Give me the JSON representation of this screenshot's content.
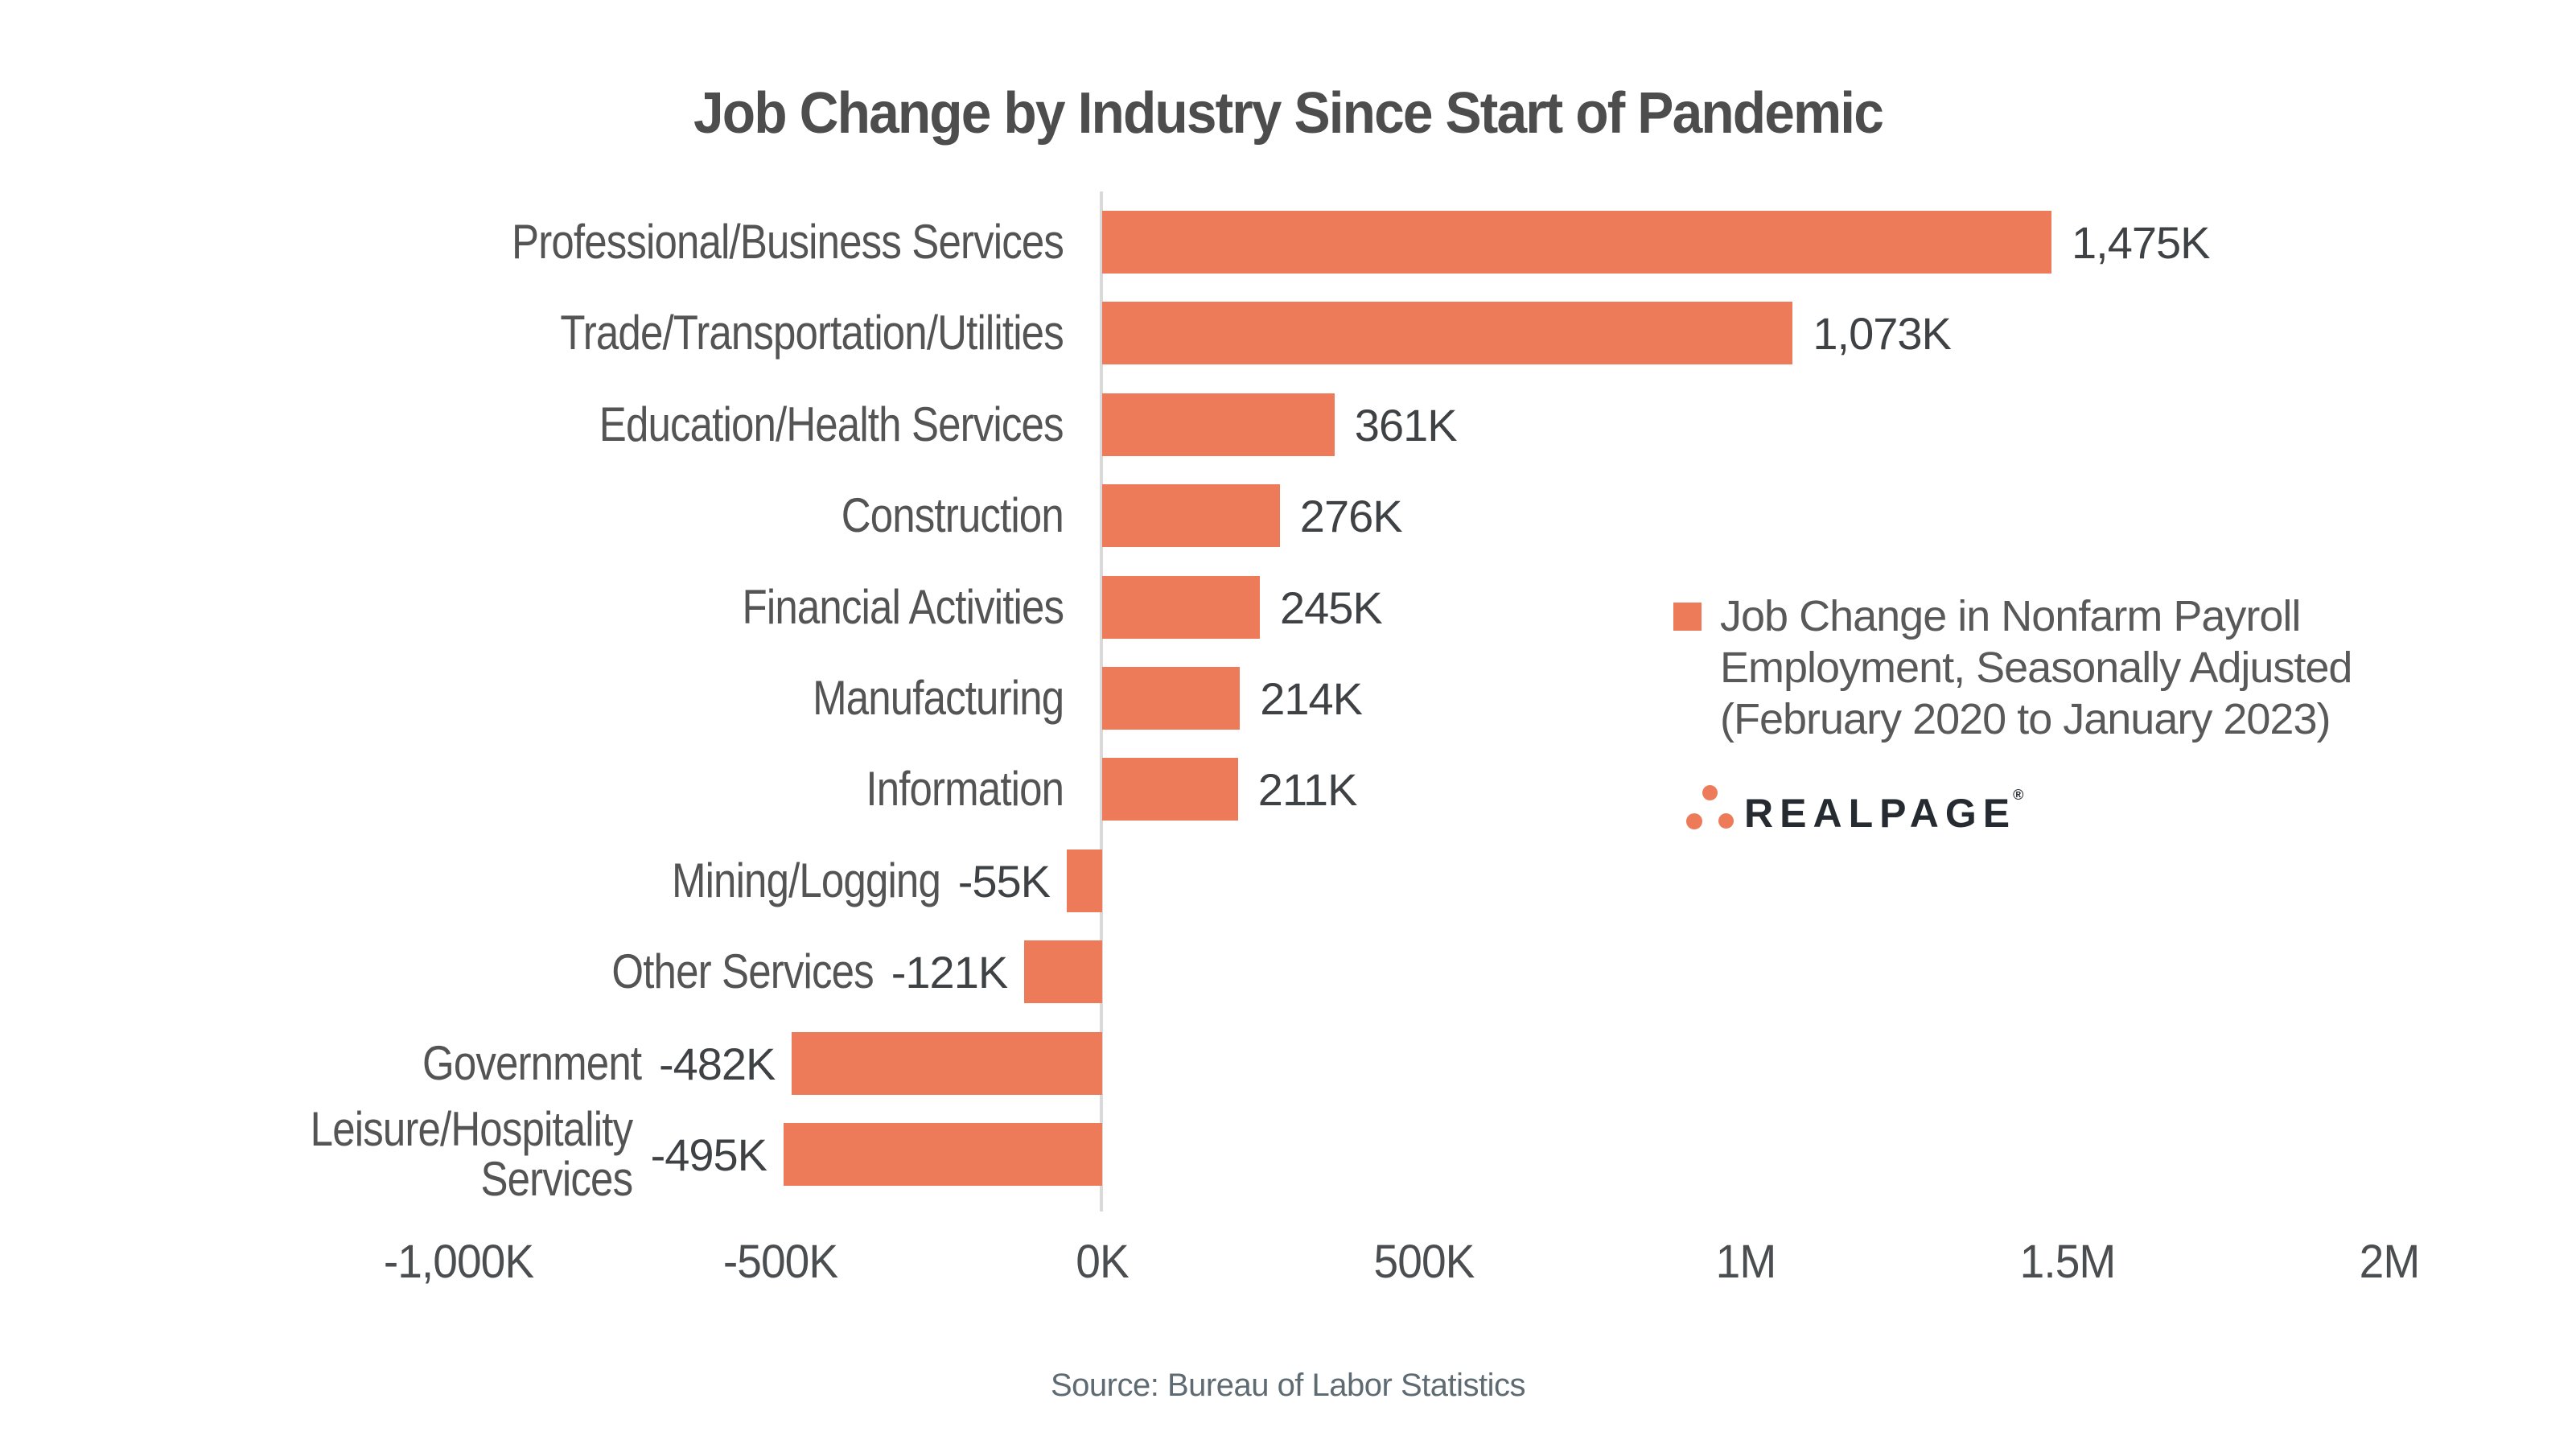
{
  "title": "Job Change by Industry Since Start of Pandemic",
  "source": "Source: Bureau of Labor Statistics",
  "legend": {
    "lines": [
      "Job Change in Nonfarm Payroll",
      "Employment, Seasonally Adjusted",
      "(February 2020 to January 2023)"
    ]
  },
  "logo": {
    "text": "REALPAGE",
    "registered": "®"
  },
  "colors": {
    "bar": "#ED7A59",
    "legend_marker": "#ED7A59",
    "logo_dot": "#ED7B5A",
    "logo_text": "#262b31",
    "axis_line": "#d9d9d9",
    "title_text": "#4d4d4d",
    "category_text": "#545454",
    "value_text": "#3f4245",
    "tick_text": "#4b4e50",
    "source_text": "#5f6b73"
  },
  "chart_data": {
    "type": "bar",
    "orientation": "horizontal",
    "title": "Job Change by Industry Since Start of Pandemic",
    "unit": "thousands of jobs (K)",
    "grid": false,
    "legend_position": "right-center",
    "categories": [
      "Professional/Business Services",
      "Trade/Transportation/Utilities",
      "Education/Health Services",
      "Construction",
      "Financial Activities",
      "Manufacturing",
      "Information",
      "Mining/Logging",
      "Other Services",
      "Government",
      "Leisure/Hospitality Services"
    ],
    "category_display_lines": [
      [
        "Professional/Business Services"
      ],
      [
        "Trade/Transportation/Utilities"
      ],
      [
        "Education/Health Services"
      ],
      [
        "Construction"
      ],
      [
        "Financial Activities"
      ],
      [
        "Manufacturing"
      ],
      [
        "Information"
      ],
      [
        "Mining/Logging"
      ],
      [
        "Other Services"
      ],
      [
        "Government"
      ],
      [
        "Leisure/Hospitality",
        "Services"
      ]
    ],
    "values": [
      1475,
      1073,
      361,
      276,
      245,
      214,
      211,
      -55,
      -121,
      -482,
      -495
    ],
    "value_labels": [
      "1,475K",
      "1,073K",
      "361K",
      "276K",
      "245K",
      "214K",
      "211K",
      "-55K",
      "-121K",
      "-482K",
      "-495K"
    ],
    "series_name": "Job Change in Nonfarm Payroll Employment, Seasonally Adjusted (February 2020 to January 2023)",
    "x_axis": {
      "tick_values": [
        -1000,
        -500,
        0,
        500,
        1000,
        1500,
        2000
      ],
      "tick_labels": [
        "-1,000K",
        "-500K",
        "0K",
        "500K",
        "1M",
        "1.5M",
        "2M"
      ],
      "xlim": [
        -1000,
        2000
      ]
    }
  }
}
